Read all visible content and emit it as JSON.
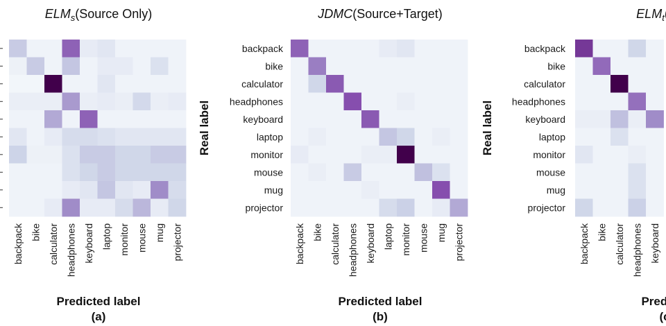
{
  "chart_data": [
    {
      "type": "heatmap",
      "title_base": "ELM",
      "title_sub": "s",
      "title_rest": "(Source Only)",
      "xlabel": "Predicted label",
      "ylabel": "",
      "panel_label": "(a)",
      "rows": [
        "backpack",
        "bike",
        "calculator",
        "headphones",
        "keyboard",
        "laptop",
        "monitor",
        "mouse",
        "mug",
        "projector"
      ],
      "rows_visible": false,
      "categories": [
        "backpack",
        "bike",
        "calculator",
        "headphones",
        "keyboard",
        "laptop",
        "monitor",
        "mouse",
        "mug",
        "projector"
      ],
      "color_scale": "white-to-dark-purple",
      "values": [
        [
          0.18,
          0.03,
          0.03,
          0.55,
          0.06,
          0.08,
          0.03,
          0.03,
          0.03,
          0.03
        ],
        [
          0.04,
          0.18,
          0.03,
          0.2,
          0.03,
          0.06,
          0.06,
          0.03,
          0.1,
          0.03
        ],
        [
          0.02,
          0.02,
          1.0,
          0.03,
          0.03,
          0.08,
          0.03,
          0.03,
          0.03,
          0.03
        ],
        [
          0.05,
          0.05,
          0.05,
          0.35,
          0.05,
          0.06,
          0.05,
          0.13,
          0.05,
          0.06
        ],
        [
          0.03,
          0.03,
          0.3,
          0.03,
          0.55,
          0.03,
          0.03,
          0.03,
          0.03,
          0.03
        ],
        [
          0.08,
          0.03,
          0.06,
          0.12,
          0.12,
          0.1,
          0.08,
          0.08,
          0.08,
          0.08
        ],
        [
          0.15,
          0.04,
          0.04,
          0.1,
          0.18,
          0.18,
          0.14,
          0.14,
          0.18,
          0.18
        ],
        [
          0.03,
          0.03,
          0.03,
          0.1,
          0.14,
          0.18,
          0.14,
          0.14,
          0.14,
          0.14
        ],
        [
          0.03,
          0.03,
          0.03,
          0.06,
          0.08,
          0.2,
          0.08,
          0.06,
          0.4,
          0.12
        ],
        [
          0.03,
          0.03,
          0.06,
          0.4,
          0.06,
          0.06,
          0.12,
          0.25,
          0.06,
          0.14
        ]
      ]
    },
    {
      "type": "heatmap",
      "title_base": "JDMC",
      "title_sub": "",
      "title_rest": "(Source+Target)",
      "xlabel": "Predicted label",
      "ylabel": "Real label",
      "panel_label": "(b)",
      "rows": [
        "backpack",
        "bike",
        "calculator",
        "headphones",
        "keyboard",
        "laptop",
        "monitor",
        "mouse",
        "mug",
        "projector"
      ],
      "rows_visible": true,
      "categories": [
        "backpack",
        "bike",
        "calculator",
        "headphones",
        "keyboard",
        "laptop",
        "monitor",
        "mouse",
        "mug",
        "projector"
      ],
      "color_scale": "white-to-dark-purple",
      "values": [
        [
          0.55,
          0.03,
          0.03,
          0.03,
          0.03,
          0.06,
          0.08,
          0.03,
          0.03,
          0.03
        ],
        [
          0.03,
          0.45,
          0.03,
          0.03,
          0.03,
          0.03,
          0.03,
          0.03,
          0.03,
          0.03
        ],
        [
          0.03,
          0.14,
          0.58,
          0.03,
          0.03,
          0.03,
          0.03,
          0.03,
          0.03,
          0.03
        ],
        [
          0.03,
          0.03,
          0.03,
          0.62,
          0.03,
          0.03,
          0.05,
          0.03,
          0.03,
          0.03
        ],
        [
          0.03,
          0.03,
          0.03,
          0.03,
          0.58,
          0.03,
          0.03,
          0.03,
          0.03,
          0.03
        ],
        [
          0.03,
          0.05,
          0.03,
          0.03,
          0.03,
          0.2,
          0.14,
          0.03,
          0.05,
          0.03
        ],
        [
          0.06,
          0.03,
          0.03,
          0.03,
          0.05,
          0.05,
          1.0,
          0.03,
          0.03,
          0.03
        ],
        [
          0.03,
          0.05,
          0.03,
          0.18,
          0.03,
          0.03,
          0.03,
          0.22,
          0.1,
          0.03
        ],
        [
          0.03,
          0.03,
          0.03,
          0.03,
          0.05,
          0.03,
          0.03,
          0.03,
          0.62,
          0.03
        ],
        [
          0.03,
          0.03,
          0.03,
          0.03,
          0.03,
          0.12,
          0.16,
          0.03,
          0.06,
          0.3
        ]
      ]
    },
    {
      "type": "heatmap",
      "title_base": "ELM",
      "title_sub": "t",
      "title_rest": "(Targ",
      "xlabel": "Predicte",
      "ylabel": "Real label",
      "panel_label": "(c",
      "rows": [
        "backpack",
        "bike",
        "calculator",
        "headphones",
        "keyboard",
        "laptop",
        "monitor",
        "mouse",
        "mug",
        "projector"
      ],
      "rows_visible": true,
      "categories": [
        "backpack",
        "bike",
        "calculator",
        "headphones",
        "keyboard"
      ],
      "color_scale": "white-to-dark-purple",
      "values": [
        [
          0.72,
          0.03,
          0.03,
          0.14,
          0.03
        ],
        [
          0.03,
          0.52,
          0.03,
          0.03,
          0.03
        ],
        [
          0.03,
          0.03,
          1.0,
          0.03,
          0.03
        ],
        [
          0.03,
          0.03,
          0.03,
          0.5,
          0.03
        ],
        [
          0.05,
          0.05,
          0.22,
          0.05,
          0.4
        ],
        [
          0.03,
          0.03,
          0.1,
          0.03,
          0.03
        ],
        [
          0.08,
          0.03,
          0.03,
          0.05,
          0.03
        ],
        [
          0.03,
          0.03,
          0.03,
          0.1,
          0.03
        ],
        [
          0.03,
          0.03,
          0.03,
          0.1,
          0.03
        ],
        [
          0.14,
          0.03,
          0.03,
          0.16,
          0.03
        ]
      ]
    }
  ]
}
